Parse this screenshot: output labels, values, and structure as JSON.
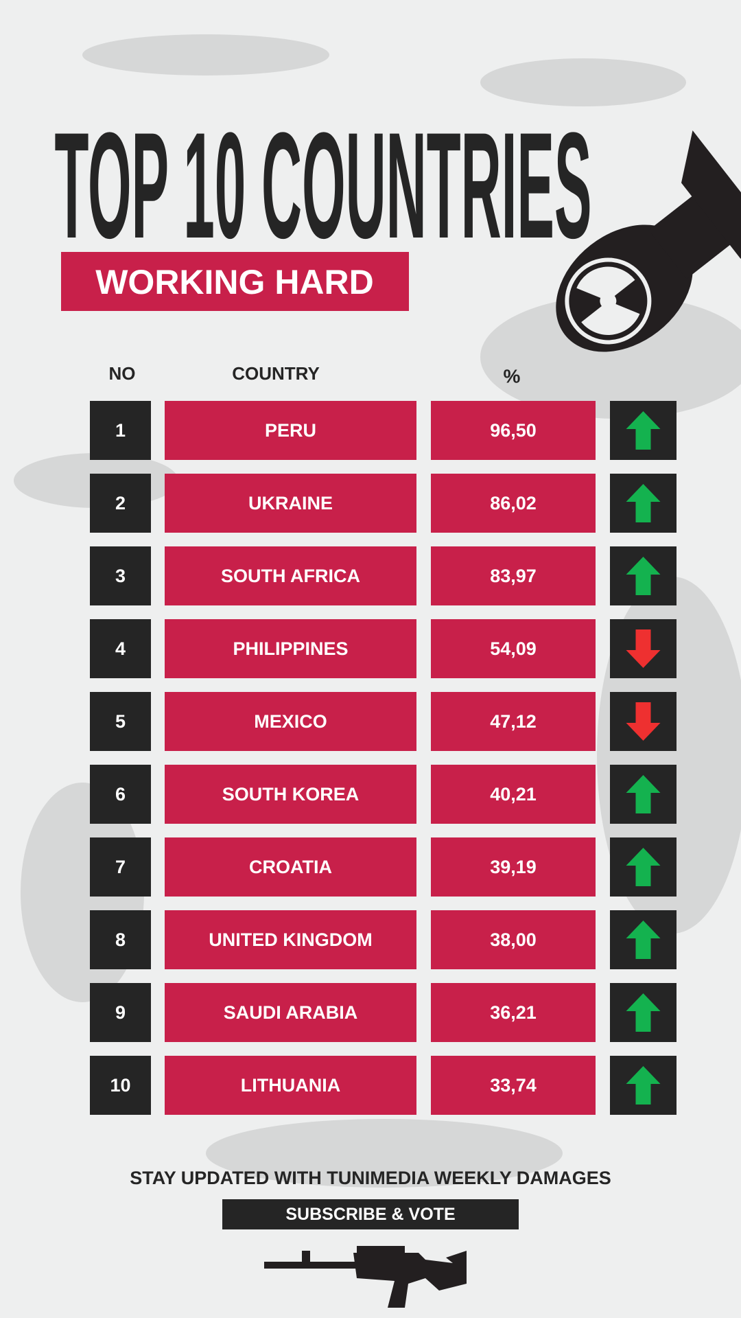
{
  "header": {
    "title": "TOP 10 COUNTRIES",
    "subtitle": "WORKING HARD"
  },
  "table": {
    "columns": [
      "NO",
      "COUNTRY",
      "%"
    ],
    "rows": [
      [
        "1",
        "PERU",
        "96,50"
      ],
      [
        "2",
        "UKRAINE",
        "86,02"
      ],
      [
        "3",
        "SOUTH AFRICA",
        "83,97"
      ],
      [
        "4",
        "PHILIPPINES",
        "54,09"
      ],
      [
        "5",
        "MEXICO",
        "47,12"
      ],
      [
        "6",
        "SOUTH KOREA",
        "40,21"
      ],
      [
        "7",
        "CROATIA",
        "39,19"
      ],
      [
        "8",
        "UNITED KINGDOM",
        "38,00"
      ],
      [
        "9",
        "SAUDI ARABIA",
        "36,21"
      ],
      [
        "10",
        "LITHUANIA",
        "33,74"
      ]
    ],
    "trends": [
      "up",
      "up",
      "up",
      "down",
      "down",
      "up",
      "up",
      "up",
      "up",
      "up"
    ],
    "trend_colors": {
      "up": "#14b24f",
      "down": "#ee3030"
    }
  },
  "footer": {
    "text": "STAY UPDATED WITH TUNIMEDIA  WEEKLY DAMAGES",
    "button": "SUBSCRIBE & VOTE"
  }
}
